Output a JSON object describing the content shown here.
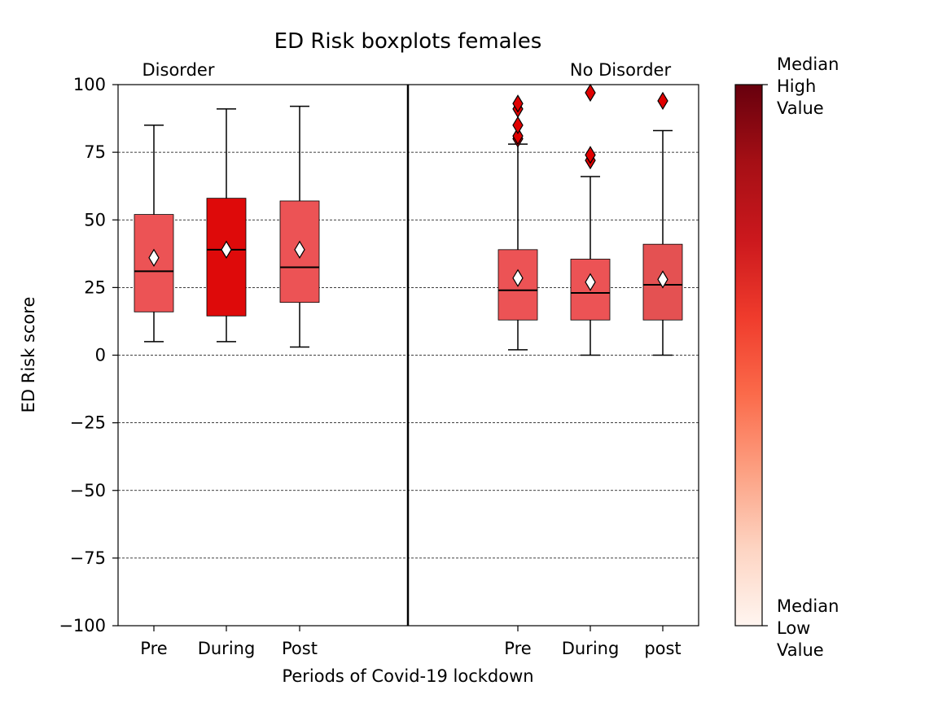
{
  "chart_data": {
    "type": "boxplot",
    "title": "ED Risk boxplots females",
    "xlabel": "Periods of Covid-19 lockdown",
    "ylabel": "ED Risk score",
    "ylim": [
      -100,
      100
    ],
    "yticks": [
      -100,
      -75,
      -50,
      -25,
      0,
      25,
      50,
      75,
      100
    ],
    "grid": "horizontal dashed",
    "groups": [
      {
        "label": "Disorder",
        "label_color": "#ff0000",
        "boxes": [
          {
            "category": "Pre",
            "whisker_low": 5,
            "q1": 16,
            "median": 31,
            "q3": 52,
            "whisker_high": 85,
            "mean": 36,
            "fill": "#ec5355",
            "outliers": []
          },
          {
            "category": "During",
            "whisker_low": 5,
            "q1": 14.5,
            "median": 39,
            "q3": 58,
            "whisker_high": 91,
            "mean": 39,
            "fill": "#de0a0a",
            "outliers": []
          },
          {
            "category": "Post",
            "whisker_low": 3,
            "q1": 19.5,
            "median": 32.5,
            "q3": 57,
            "whisker_high": 92,
            "mean": 39,
            "fill": "#ec5355",
            "outliers": []
          }
        ]
      },
      {
        "label": "No Disorder",
        "label_color": "#ff0000",
        "boxes": [
          {
            "category": "Pre",
            "whisker_low": 2,
            "q1": 13,
            "median": 24,
            "q3": 39,
            "whisker_high": 78,
            "mean": 28.5,
            "fill": "#ec5355",
            "outliers": [
              80,
              81,
              85,
              91,
              93
            ]
          },
          {
            "category": "During",
            "whisker_low": 0,
            "q1": 13,
            "median": 23,
            "q3": 35.5,
            "whisker_high": 66,
            "mean": 27,
            "fill": "#ec5355",
            "outliers": [
              72,
              74,
              97
            ]
          },
          {
            "category": "post",
            "whisker_low": 0,
            "q1": 13,
            "median": 26,
            "q3": 41,
            "whisker_high": 83,
            "mean": 28,
            "fill": "#e45152",
            "outliers": [
              94
            ]
          }
        ]
      }
    ],
    "outlier_color": "#e00000",
    "mean_marker_color": "#ffffff",
    "colorbar": {
      "label_top": "Median\nHigh\nValue",
      "label_bottom": "Median\nLow\nValue",
      "colors": [
        "#fff5f0",
        "#fdd4c2",
        "#fca082",
        "#fb6a4a",
        "#ef3b2c",
        "#cb181d",
        "#a50f15",
        "#67000d"
      ]
    }
  }
}
